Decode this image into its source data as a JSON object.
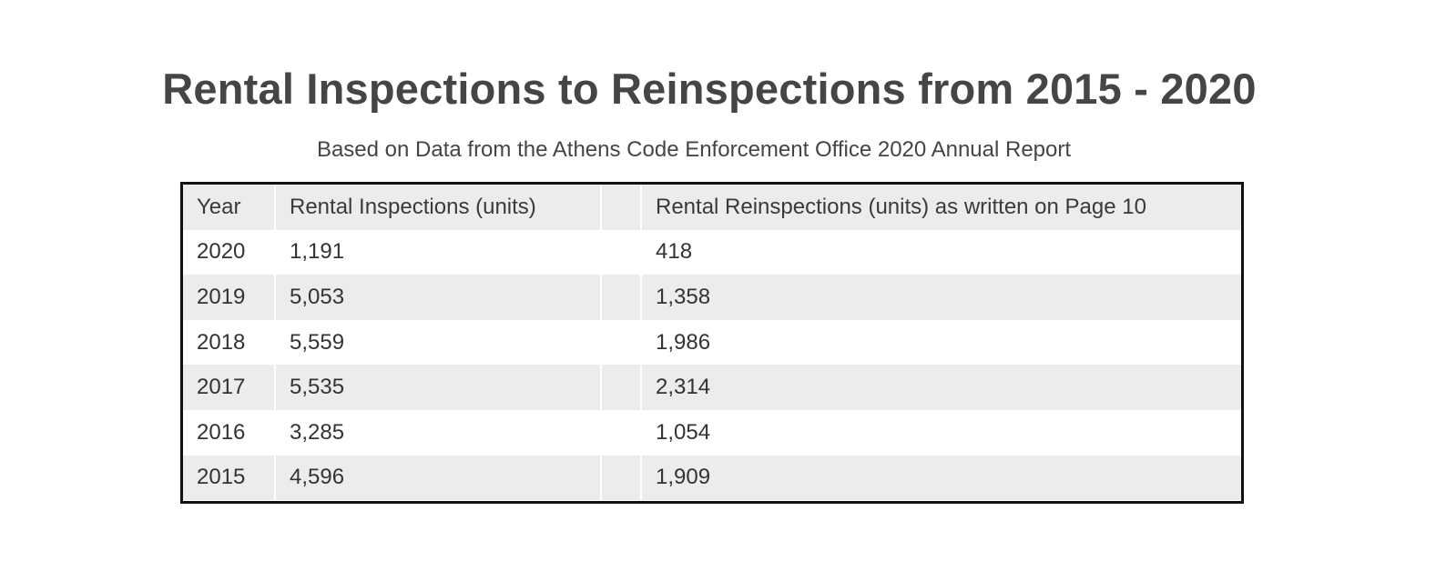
{
  "chart_data": {
    "type": "table",
    "title": "Rental Inspections to Reinspections from 2015 - 2020",
    "subtitle": "Based on Data from the Athens Code Enforcement Office 2020 Annual Report",
    "columns": [
      "Year",
      "Rental Inspections (units)",
      "Rental Reinspections (units) as written on Page 10"
    ],
    "rows": [
      {
        "year": "2020",
        "inspections": "1,191",
        "reinspections": "418"
      },
      {
        "year": "2019",
        "inspections": "5,053",
        "reinspections": "1,358"
      },
      {
        "year": "2018",
        "inspections": "5,559",
        "reinspections": "1,986"
      },
      {
        "year": "2017",
        "inspections": "5,535",
        "reinspections": "2,314"
      },
      {
        "year": "2016",
        "inspections": "3,285",
        "reinspections": "1,054"
      },
      {
        "year": "2015",
        "inspections": "4,596",
        "reinspections": "1,909"
      }
    ]
  },
  "colors": {
    "text": "#444444",
    "row_shade": "#ececec",
    "border": "#111111"
  }
}
